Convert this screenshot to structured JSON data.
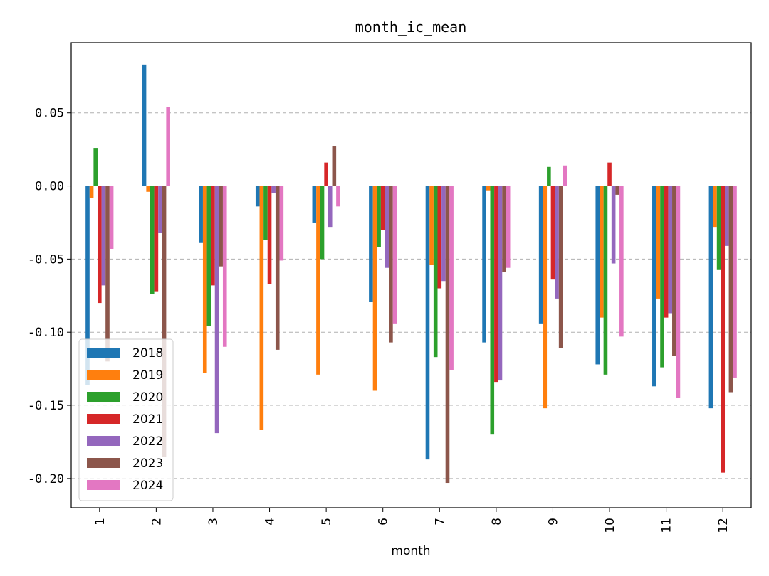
{
  "chart_data": {
    "type": "bar",
    "title": "month_ic_mean",
    "xlabel": "month",
    "ylabel": "",
    "ylim": [
      -0.22,
      0.098
    ],
    "yticks": [
      -0.2,
      -0.15,
      -0.1,
      -0.05,
      0.0,
      0.05
    ],
    "ytick_labels": [
      "-0.20",
      "-0.15",
      "-0.10",
      "-0.05",
      "0.00",
      "0.05"
    ],
    "grid": "y-dashed",
    "legend_position": "lower-left",
    "categories": [
      "1",
      "2",
      "3",
      "4",
      "5",
      "6",
      "7",
      "8",
      "9",
      "10",
      "11",
      "12"
    ],
    "series": [
      {
        "name": "2018",
        "color": "#1f77b4",
        "values": [
          -0.136,
          0.083,
          -0.039,
          -0.014,
          -0.025,
          -0.079,
          -0.187,
          -0.107,
          -0.094,
          -0.122,
          -0.137,
          -0.152
        ]
      },
      {
        "name": "2019",
        "color": "#ff7f0e",
        "values": [
          -0.008,
          -0.004,
          -0.128,
          -0.167,
          -0.129,
          -0.14,
          -0.054,
          -0.003,
          -0.152,
          -0.09,
          -0.077,
          -0.028
        ]
      },
      {
        "name": "2020",
        "color": "#2ca02c",
        "values": [
          0.026,
          -0.074,
          -0.096,
          -0.037,
          -0.05,
          -0.042,
          -0.117,
          -0.17,
          0.013,
          -0.129,
          -0.124,
          -0.057
        ]
      },
      {
        "name": "2021",
        "color": "#d62728",
        "values": [
          -0.08,
          -0.072,
          -0.068,
          -0.067,
          0.016,
          -0.03,
          -0.07,
          -0.134,
          -0.064,
          0.016,
          -0.09,
          -0.196
        ]
      },
      {
        "name": "2022",
        "color": "#9467bd",
        "values": [
          -0.068,
          -0.032,
          -0.169,
          -0.005,
          -0.028,
          -0.056,
          -0.065,
          -0.133,
          -0.077,
          -0.053,
          -0.087,
          -0.041
        ]
      },
      {
        "name": "2023",
        "color": "#8c564b",
        "values": [
          -0.12,
          -0.185,
          -0.055,
          -0.112,
          0.027,
          -0.107,
          -0.203,
          -0.059,
          -0.111,
          -0.006,
          -0.116,
          -0.141
        ]
      },
      {
        "name": "2024",
        "color": "#e377c2",
        "values": [
          -0.043,
          0.054,
          -0.11,
          -0.051,
          -0.014,
          -0.094,
          -0.126,
          -0.056,
          0.014,
          -0.103,
          -0.145,
          -0.131
        ]
      }
    ]
  }
}
